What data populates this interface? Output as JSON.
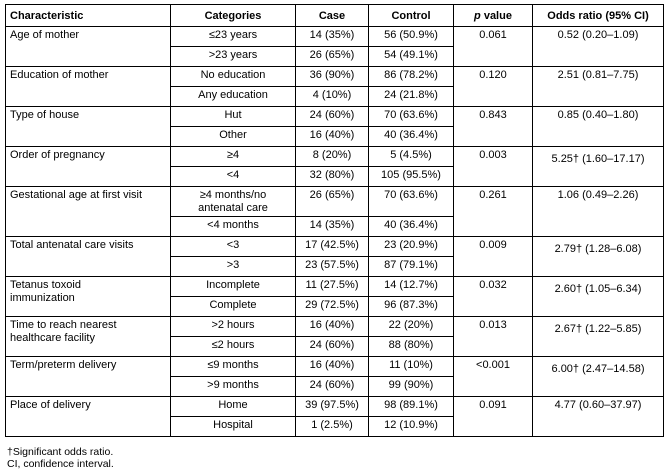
{
  "table": {
    "headers": {
      "characteristic": "Characteristic",
      "categories": "Categories",
      "case": "Case",
      "control": "Control",
      "p_italic": "p",
      "p_rest": " value",
      "odds_ratio": "Odds ratio (95% CI)"
    },
    "rows": [
      {
        "characteristic": "Age of mother",
        "categories": [
          {
            "label": "≤23 years",
            "case": "14 (35%)",
            "control": "56 (50.9%)"
          },
          {
            "label": ">23 years",
            "case": "26 (65%)",
            "control": "54 (49.1%)"
          }
        ],
        "p_value": "0.061",
        "odds_ratio": "0.52 (0.20–1.09)",
        "significant": false
      },
      {
        "characteristic": "Education of mother",
        "categories": [
          {
            "label": "No education",
            "case": "36 (90%)",
            "control": "86 (78.2%)"
          },
          {
            "label": "Any education",
            "case": "4 (10%)",
            "control": "24 (21.8%)"
          }
        ],
        "p_value": "0.120",
        "odds_ratio": "2.51 (0.81–7.75)",
        "significant": false
      },
      {
        "characteristic": "Type of house",
        "categories": [
          {
            "label": "Hut",
            "case": "24 (60%)",
            "control": "70 (63.6%)"
          },
          {
            "label": "Other",
            "case": "16 (40%)",
            "control": "40 (36.4%)"
          }
        ],
        "p_value": "0.843",
        "odds_ratio": "0.85 (0.40–1.80)",
        "significant": false
      },
      {
        "characteristic": "Order of pregnancy",
        "categories": [
          {
            "label": "≥4",
            "case": "8 (20%)",
            "control": "5 (4.5%)"
          },
          {
            "label": "<4",
            "case": "32 (80%)",
            "control": "105 (95.5%)"
          }
        ],
        "p_value": "0.003",
        "odds_ratio": "5.25† (1.60–17.17)",
        "significant": true
      },
      {
        "characteristic": "Gestational age at first visit",
        "categories": [
          {
            "label": "≥4 months/no\nantenatal care",
            "case": "26 (65%)",
            "control": "70 (63.6%)"
          },
          {
            "label": "<4 months",
            "case": "14 (35%)",
            "control": "40 (36.4%)"
          }
        ],
        "p_value": "0.261",
        "odds_ratio": "1.06 (0.49–2.26)",
        "significant": false
      },
      {
        "characteristic": "Total antenatal care visits",
        "categories": [
          {
            "label": "<3",
            "case": "17 (42.5%)",
            "control": "23 (20.9%)"
          },
          {
            "label": ">3",
            "case": "23 (57.5%)",
            "control": "87 (79.1%)"
          }
        ],
        "p_value": "0.009",
        "odds_ratio": "2.79† (1.28–6.08)",
        "significant": true
      },
      {
        "characteristic": "Tetanus toxoid\nimmunization",
        "categories": [
          {
            "label": "Incomplete",
            "case": "11 (27.5%)",
            "control": "14 (12.7%)"
          },
          {
            "label": "Complete",
            "case": "29 (72.5%)",
            "control": "96 (87.3%)"
          }
        ],
        "p_value": "0.032",
        "odds_ratio": "2.60† (1.05–6.34)",
        "significant": true
      },
      {
        "characteristic": "Time to reach nearest\nhealthcare facility",
        "categories": [
          {
            "label": ">2 hours",
            "case": "16 (40%)",
            "control": "22 (20%)"
          },
          {
            "label": "≤2 hours",
            "case": "24 (60%)",
            "control": "88 (80%)"
          }
        ],
        "p_value": "0.013",
        "odds_ratio": "2.67† (1.22–5.85)",
        "significant": true
      },
      {
        "characteristic": "Term/preterm delivery",
        "categories": [
          {
            "label": "≤9 months",
            "case": "16 (40%)",
            "control": "11 (10%)"
          },
          {
            "label": ">9 months",
            "case": "24 (60%)",
            "control": "99 (90%)"
          }
        ],
        "p_value": "<0.001",
        "odds_ratio": "6.00† (2.47–14.58)",
        "significant": true
      },
      {
        "characteristic": "Place of delivery",
        "categories": [
          {
            "label": "Home",
            "case": "39 (97.5%)",
            "control": "98 (89.1%)"
          },
          {
            "label": "Hospital",
            "case": "1 (2.5%)",
            "control": "12 (10.9%)"
          }
        ],
        "p_value": "0.091",
        "odds_ratio": "4.77 (0.60–37.97)",
        "significant": false
      }
    ]
  },
  "footnotes": [
    "†Significant odds ratio.",
    "CI, confidence interval."
  ]
}
